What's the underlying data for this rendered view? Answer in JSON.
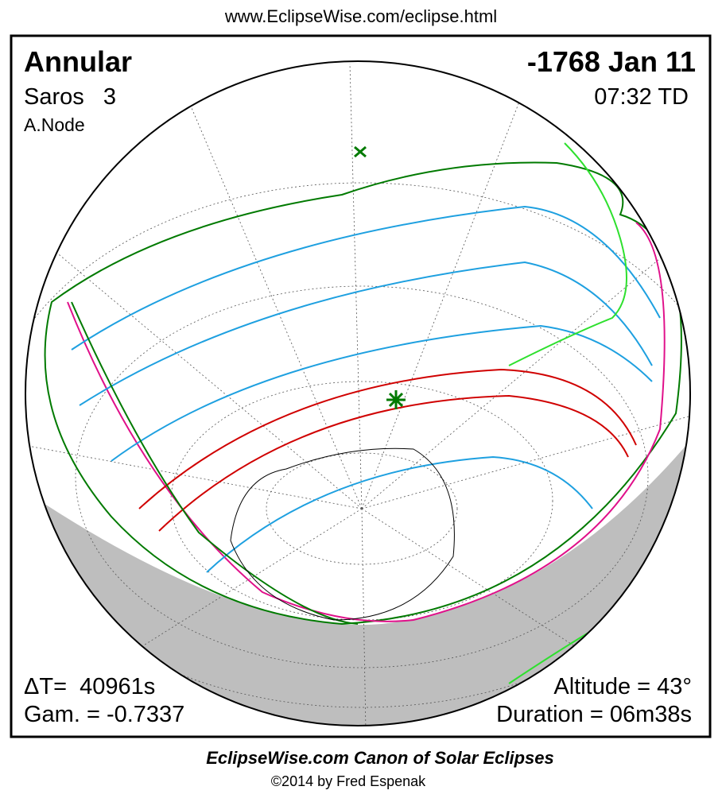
{
  "header": {
    "url": "www.EclipseWise.com/eclipse.html"
  },
  "map": {
    "eclipse_type": "Annular",
    "date": "-1768 Jan 11",
    "saros": "Saros   3",
    "time": "07:32 TD",
    "node": "A.Node",
    "delta_t": "ΔT=  40961s",
    "gamma": "Gam. = -0.7337",
    "altitude": "Altitude = 43°",
    "duration": "Duration = 06m38s"
  },
  "footer": {
    "title": "EclipseWise.com Canon of Solar Eclipses",
    "copyright": "©2014 by Fred Espenak"
  }
}
